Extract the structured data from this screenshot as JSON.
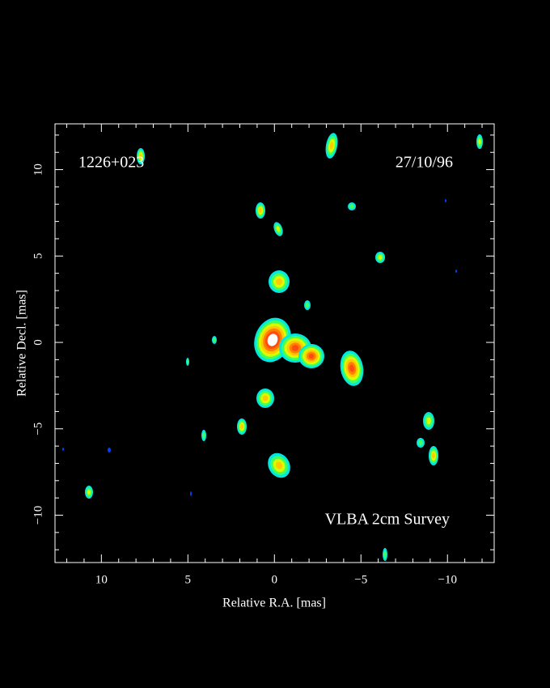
{
  "chart_data": {
    "type": "image",
    "annotations": [
      "1226+023",
      "27/10/96",
      "VLBA 2cm Survey"
    ],
    "xlabel": "Relative R.A. [mas]",
    "ylabel": "Relative Decl. [mas]",
    "xlim": [
      12.68,
      -12.7
    ],
    "ylim": [
      -12.74,
      12.65
    ],
    "xticks": [
      10,
      5,
      0,
      {
        "value": -5,
        "label": "−5"
      },
      {
        "value": -10,
        "label": "−10"
      }
    ],
    "yticks": [
      {
        "value": -10,
        "label": "−10"
      },
      {
        "value": -5,
        "label": "−5"
      },
      0,
      5,
      10
    ],
    "xminorticks": [
      12,
      11,
      9,
      8,
      7,
      6,
      4,
      3,
      2,
      1,
      -1,
      -2,
      -3,
      -4,
      -6,
      -7,
      -8,
      -9,
      -11,
      -12
    ],
    "yminorticks": [
      -12,
      -11,
      -9,
      -8,
      -7,
      -6,
      -4,
      -3,
      -2,
      -1,
      1,
      2,
      3,
      4,
      6,
      7,
      8,
      9,
      11,
      12
    ],
    "background": "#000000",
    "axis_color": "#ffffff"
  }
}
